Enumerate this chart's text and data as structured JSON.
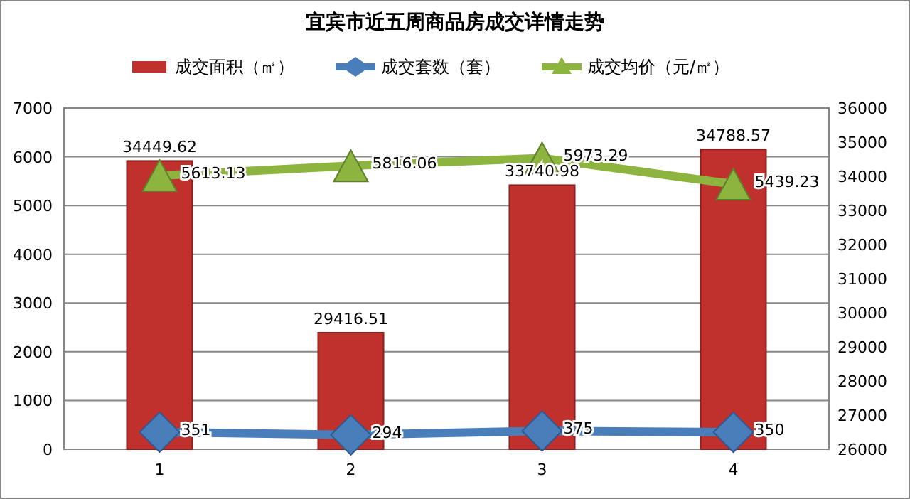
{
  "chart_data": {
    "type": "bar",
    "title": "宜宾市近五周商品房成交详情走势",
    "categories": [
      "1",
      "2",
      "3",
      "4"
    ],
    "series": [
      {
        "name": "成交面积（㎡）",
        "axis": "y2",
        "color": "#c0302c",
        "values": [
          34449.62,
          29416.51,
          33740.98,
          34788.57
        ]
      },
      {
        "name": "成交套数（套）",
        "type": "line",
        "axis": "y",
        "color": "#4a7ebb",
        "marker": "diamond",
        "values": [
          351,
          294,
          375,
          350
        ]
      },
      {
        "name": "成交均价（元/㎡）",
        "type": "line",
        "axis": "y",
        "color": "#8cb43f",
        "marker": "triangle",
        "values": [
          5613.13,
          5816.06,
          5973.29,
          5439.23
        ]
      }
    ],
    "ylim": [
      0,
      7000
    ],
    "yticks": [
      0,
      1000,
      2000,
      3000,
      4000,
      5000,
      6000,
      7000
    ],
    "y2lim": [
      26000,
      36000
    ],
    "y2ticks": [
      26000,
      27000,
      28000,
      29000,
      30000,
      31000,
      32000,
      33000,
      34000,
      35000,
      36000
    ],
    "data_labels": true,
    "grid": "y",
    "legend": "top"
  }
}
